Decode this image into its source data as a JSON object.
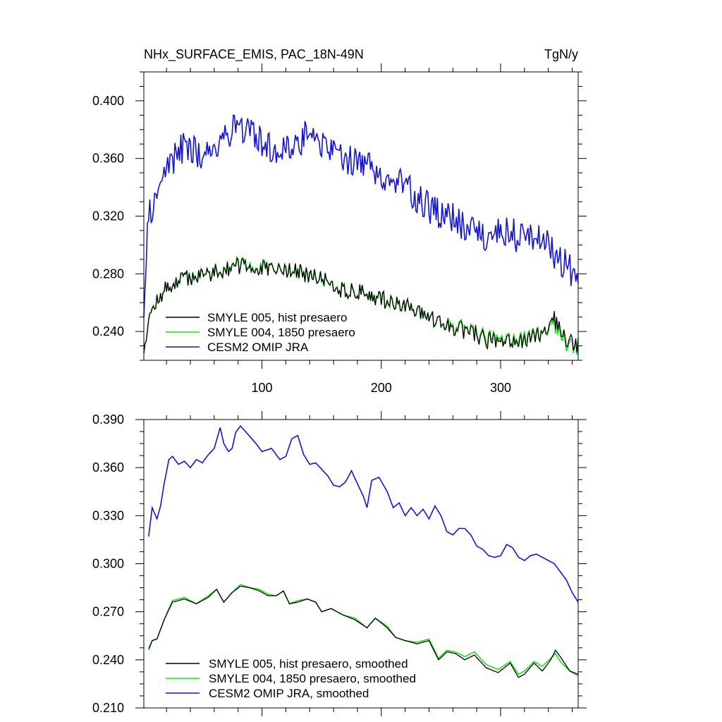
{
  "figure": {
    "title_left": "NHx_SURFACE_EMIS, PAC_18N-49N",
    "title_right": "TgN/y"
  },
  "colors": {
    "smyle005": "#000000",
    "smyle004": "#1fe01f",
    "cesm2": "#1414d4"
  },
  "chart_data": [
    {
      "type": "line",
      "title": "NHx_SURFACE_EMIS, PAC_18N-49N",
      "units": "TgN/y",
      "xlim": [
        1,
        365
      ],
      "ylim": [
        0.22,
        0.42
      ],
      "xticks": [
        100,
        200,
        300
      ],
      "yticks": [
        0.24,
        0.28,
        0.32,
        0.36,
        0.4
      ],
      "ytick_labels": [
        "0.240",
        "0.280",
        "0.320",
        "0.360",
        "0.400"
      ],
      "legend_position": "bottom-left",
      "series": [
        {
          "name": "SMYLE 005, hist presaero",
          "color": "#000000",
          "key_x": [
            1,
            5,
            10,
            20,
            35,
            50,
            65,
            80,
            95,
            110,
            125,
            140,
            155,
            170,
            185,
            200,
            215,
            230,
            245,
            260,
            275,
            290,
            305,
            320,
            335,
            345,
            355,
            365
          ],
          "key_y": [
            0.228,
            0.25,
            0.258,
            0.27,
            0.277,
            0.279,
            0.283,
            0.285,
            0.284,
            0.282,
            0.283,
            0.278,
            0.275,
            0.268,
            0.267,
            0.262,
            0.26,
            0.253,
            0.248,
            0.242,
            0.24,
            0.233,
            0.235,
            0.233,
            0.24,
            0.248,
            0.235,
            0.23
          ]
        },
        {
          "name": "SMYLE 004, 1850 presaero",
          "color": "#1fe01f",
          "key_x": [
            1,
            5,
            10,
            20,
            35,
            50,
            65,
            80,
            95,
            110,
            125,
            140,
            155,
            170,
            185,
            200,
            215,
            230,
            245,
            260,
            275,
            290,
            305,
            320,
            335,
            345,
            355,
            365
          ],
          "key_y": [
            0.228,
            0.25,
            0.258,
            0.27,
            0.277,
            0.279,
            0.283,
            0.286,
            0.285,
            0.282,
            0.283,
            0.278,
            0.275,
            0.268,
            0.267,
            0.262,
            0.26,
            0.253,
            0.248,
            0.243,
            0.241,
            0.235,
            0.236,
            0.235,
            0.24,
            0.245,
            0.233,
            0.228
          ]
        },
        {
          "name": "CESM2 OMIP JRA",
          "color": "#1414d4",
          "key_x": [
            1,
            5,
            10,
            20,
            35,
            50,
            65,
            80,
            95,
            110,
            125,
            140,
            155,
            170,
            185,
            200,
            215,
            230,
            245,
            260,
            275,
            290,
            305,
            320,
            335,
            345,
            355,
            365
          ],
          "key_y": [
            0.255,
            0.32,
            0.33,
            0.355,
            0.368,
            0.362,
            0.372,
            0.385,
            0.373,
            0.368,
            0.367,
            0.38,
            0.367,
            0.36,
            0.358,
            0.35,
            0.343,
            0.333,
            0.322,
            0.318,
            0.31,
            0.305,
            0.31,
            0.303,
            0.305,
            0.295,
            0.285,
            0.275
          ]
        }
      ]
    },
    {
      "type": "line",
      "xlim": [
        1,
        365
      ],
      "ylim": [
        0.21,
        0.39
      ],
      "xticks": [
        100,
        200,
        300
      ],
      "yticks": [
        0.21,
        0.24,
        0.27,
        0.3,
        0.33,
        0.36,
        0.39
      ],
      "ytick_labels": [
        "0.210",
        "0.240",
        "0.270",
        "0.300",
        "0.330",
        "0.360",
        "0.390"
      ],
      "legend_position": "bottom-left",
      "series": [
        {
          "name": "SMYLE 005, hist presaero, smoothed",
          "color": "#000000",
          "key_x": [
            5,
            8,
            12,
            18,
            25,
            35,
            45,
            55,
            62,
            68,
            75,
            82,
            90,
            98,
            105,
            112,
            118,
            123,
            130,
            138,
            145,
            150,
            158,
            168,
            178,
            188,
            195,
            205,
            212,
            220,
            230,
            240,
            248,
            255,
            262,
            270,
            278,
            288,
            298,
            308,
            315,
            320,
            328,
            335,
            342,
            346,
            350,
            358,
            365
          ],
          "key_y": [
            0.247,
            0.252,
            0.253,
            0.265,
            0.276,
            0.278,
            0.275,
            0.279,
            0.284,
            0.276,
            0.282,
            0.286,
            0.285,
            0.283,
            0.28,
            0.28,
            0.283,
            0.275,
            0.276,
            0.278,
            0.276,
            0.27,
            0.272,
            0.268,
            0.265,
            0.26,
            0.266,
            0.26,
            0.254,
            0.252,
            0.25,
            0.252,
            0.24,
            0.245,
            0.244,
            0.24,
            0.243,
            0.235,
            0.232,
            0.238,
            0.229,
            0.231,
            0.238,
            0.233,
            0.24,
            0.246,
            0.242,
            0.233,
            0.231
          ]
        },
        {
          "name": "SMYLE 004, 1850 presaero, smoothed",
          "color": "#1fe01f",
          "key_x": [
            5,
            8,
            12,
            18,
            25,
            35,
            45,
            55,
            62,
            68,
            75,
            82,
            90,
            98,
            105,
            112,
            118,
            123,
            130,
            138,
            145,
            150,
            158,
            168,
            178,
            188,
            195,
            205,
            212,
            220,
            230,
            240,
            248,
            255,
            262,
            270,
            278,
            288,
            298,
            308,
            315,
            320,
            328,
            335,
            342,
            346,
            350,
            358,
            365
          ],
          "key_y": [
            0.246,
            0.252,
            0.253,
            0.265,
            0.277,
            0.279,
            0.275,
            0.28,
            0.284,
            0.276,
            0.282,
            0.287,
            0.285,
            0.284,
            0.281,
            0.28,
            0.283,
            0.275,
            0.277,
            0.278,
            0.276,
            0.27,
            0.272,
            0.268,
            0.266,
            0.26,
            0.266,
            0.261,
            0.254,
            0.252,
            0.251,
            0.253,
            0.241,
            0.246,
            0.245,
            0.242,
            0.245,
            0.237,
            0.234,
            0.239,
            0.231,
            0.233,
            0.239,
            0.236,
            0.241,
            0.244,
            0.239,
            0.233,
            0.23
          ]
        },
        {
          "name": "CESM2 OMIP JRA, smoothed",
          "color": "#1414d4",
          "key_x": [
            5,
            8,
            12,
            15,
            18,
            22,
            25,
            30,
            35,
            40,
            45,
            50,
            55,
            60,
            65,
            68,
            72,
            75,
            78,
            82,
            88,
            95,
            100,
            108,
            115,
            120,
            125,
            130,
            135,
            140,
            145,
            150,
            155,
            160,
            165,
            170,
            175,
            180,
            185,
            188,
            192,
            198,
            205,
            210,
            215,
            220,
            225,
            230,
            235,
            240,
            245,
            250,
            255,
            260,
            265,
            270,
            275,
            280,
            285,
            290,
            295,
            300,
            305,
            310,
            315,
            320,
            325,
            330,
            335,
            340,
            345,
            350,
            355,
            360,
            365
          ],
          "key_y": [
            0.317,
            0.335,
            0.328,
            0.336,
            0.35,
            0.365,
            0.367,
            0.362,
            0.364,
            0.36,
            0.365,
            0.363,
            0.368,
            0.372,
            0.385,
            0.375,
            0.37,
            0.372,
            0.382,
            0.386,
            0.381,
            0.375,
            0.37,
            0.372,
            0.365,
            0.367,
            0.378,
            0.38,
            0.368,
            0.362,
            0.363,
            0.359,
            0.355,
            0.349,
            0.348,
            0.351,
            0.358,
            0.35,
            0.342,
            0.335,
            0.352,
            0.354,
            0.345,
            0.335,
            0.338,
            0.33,
            0.335,
            0.33,
            0.334,
            0.328,
            0.336,
            0.33,
            0.32,
            0.318,
            0.322,
            0.322,
            0.318,
            0.311,
            0.309,
            0.305,
            0.304,
            0.305,
            0.312,
            0.31,
            0.304,
            0.302,
            0.305,
            0.306,
            0.304,
            0.302,
            0.3,
            0.295,
            0.29,
            0.282,
            0.276
          ]
        }
      ]
    }
  ]
}
